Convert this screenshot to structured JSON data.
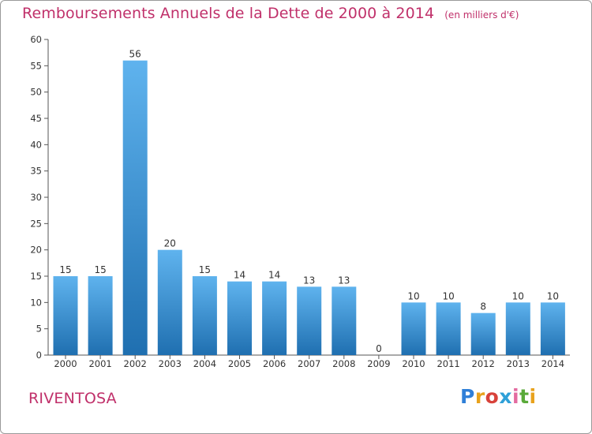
{
  "title": "Remboursements Annuels de la Dette de 2000 à 2014",
  "unit": "(en milliers d'€)",
  "commune": "RIVENTOSA",
  "logo": {
    "letters": [
      "P",
      "r",
      "o",
      "x",
      "i",
      "t",
      "i"
    ],
    "colors": [
      "#2f7fd8",
      "#e8a21c",
      "#d8423a",
      "#2fa0d8",
      "#e36ba0",
      "#5aaa3a",
      "#e8a21c"
    ]
  },
  "colors": {
    "title": "#c0306a",
    "bar_top": "#5fb3ee",
    "bar_bottom": "#1f6fb0",
    "axis": "#555555",
    "grid": "#555555"
  },
  "chart_data": {
    "type": "bar",
    "title": "Remboursements Annuels de la Dette de 2000 à 2014",
    "ylabel": "en milliers d'€",
    "xlabel": "",
    "ylim": [
      0,
      60
    ],
    "yticks": [
      0,
      5,
      10,
      15,
      20,
      25,
      30,
      35,
      40,
      45,
      50,
      55,
      60
    ],
    "grid": false,
    "categories": [
      "2000",
      "2001",
      "2002",
      "2003",
      "2004",
      "2005",
      "2006",
      "2007",
      "2008",
      "2009",
      "2010",
      "2011",
      "2012",
      "2013",
      "2014"
    ],
    "values": [
      15,
      15,
      56,
      20,
      15,
      14,
      14,
      13,
      13,
      0,
      10,
      10,
      8,
      10,
      10
    ]
  }
}
